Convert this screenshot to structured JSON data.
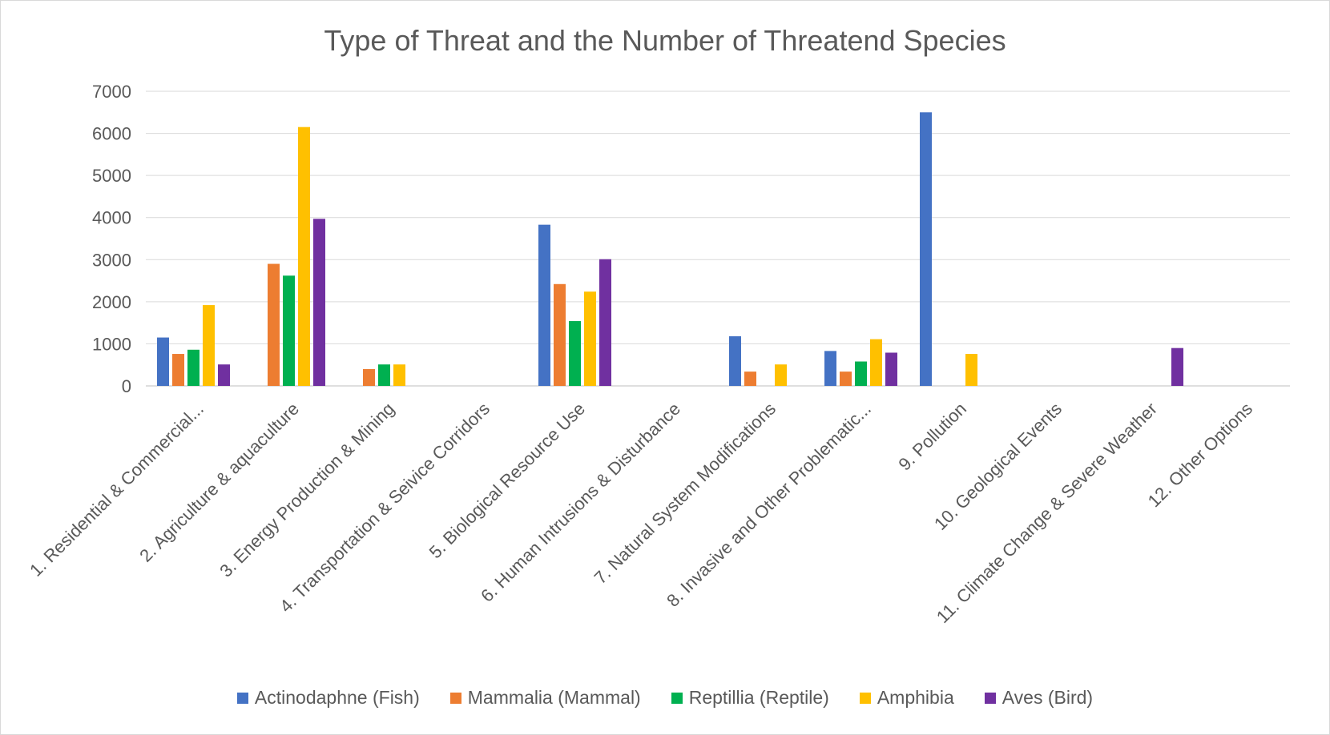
{
  "chart_data": {
    "type": "bar",
    "title": "Type of Threat and the Number of Threatend Species",
    "xlabel": "",
    "ylabel": "",
    "ylim": [
      0,
      7000
    ],
    "yticks": [
      0,
      1000,
      2000,
      3000,
      4000,
      5000,
      6000,
      7000
    ],
    "grid": true,
    "legend_position": "bottom",
    "categories": [
      "1. Residential & Commercial...",
      "2. Agriculture & aquaculture",
      "3. Energy Production & Mining",
      "4. Transportation & Seivice Corridors",
      "5. Biological Resource Use",
      "6. Human Intrusions & Disturbance",
      "7. Natural System Modifications",
      "8. Invasive and Other Problematic...",
      "9. Pollution",
      "10. Geological Events",
      "11. Climate Change & Severe Weather",
      "12. Other Options"
    ],
    "series": [
      {
        "name": "Actinodaphne (Fish)",
        "color": "#4472c4",
        "values": [
          1150,
          0,
          0,
          0,
          3830,
          0,
          1180,
          830,
          6500,
          0,
          0,
          0
        ]
      },
      {
        "name": "Mammalia (Mammal)",
        "color": "#ed7d31",
        "values": [
          760,
          2900,
          400,
          0,
          2420,
          0,
          340,
          340,
          0,
          0,
          0,
          0
        ]
      },
      {
        "name": "Reptillia (Reptile)",
        "color": "#00b050",
        "values": [
          860,
          2620,
          510,
          0,
          1540,
          0,
          0,
          580,
          0,
          0,
          0,
          0
        ]
      },
      {
        "name": "Amphibia",
        "color": "#ffc000",
        "values": [
          1920,
          6150,
          510,
          0,
          2240,
          0,
          510,
          1110,
          760,
          0,
          0,
          0
        ]
      },
      {
        "name": "Aves (Bird)",
        "color": "#7030a0",
        "values": [
          510,
          3970,
          0,
          0,
          3010,
          0,
          0,
          790,
          0,
          0,
          900,
          0
        ]
      }
    ]
  }
}
